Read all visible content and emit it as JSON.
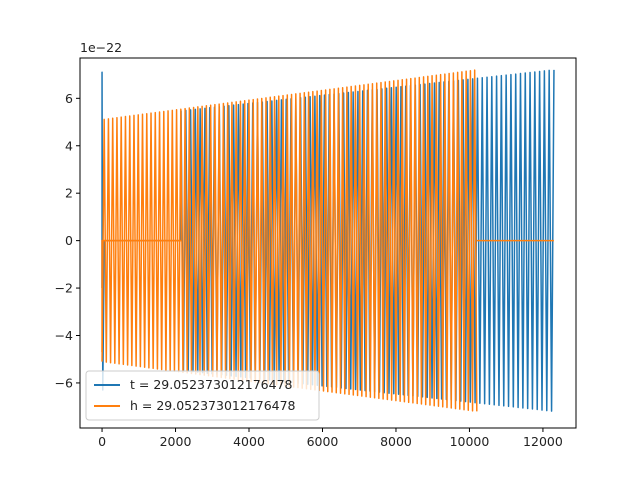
{
  "chart_data": {
    "type": "line",
    "title": "",
    "xlabel": "",
    "ylabel": "",
    "y_offset_label": "1e−22",
    "xlim": [
      -600,
      12900
    ],
    "ylim": [
      -7.9,
      7.7
    ],
    "x_ticks": [
      0,
      2000,
      4000,
      6000,
      8000,
      10000,
      12000
    ],
    "x_tick_labels": [
      "0",
      "2000",
      "4000",
      "6000",
      "8000",
      "10000",
      "12000"
    ],
    "y_ticks": [
      -6,
      -4,
      -2,
      0,
      2,
      4,
      6
    ],
    "y_tick_labels": [
      "−6",
      "−4",
      "−2",
      "0",
      "2",
      "4",
      "6"
    ],
    "grid": false,
    "legend_position": "lower-left",
    "series": [
      {
        "name": "t = 29.052373012176478",
        "color": "#1f77b4",
        "x_start": 0,
        "x_end": 12300,
        "initial_spike": 7.1,
        "quiet_until": 2150,
        "amplitude_start": 5.1,
        "amplitude_end": 7.2,
        "cycles": 78
      },
      {
        "name": "h = 29.052373012176478",
        "color": "#ff7f0e",
        "x_start": 0,
        "x_end": 12300,
        "active_until": 10200,
        "quiet_from": 10200,
        "amplitude_start": 5.1,
        "amplitude_end": 7.2,
        "cycles": 88
      }
    ]
  }
}
